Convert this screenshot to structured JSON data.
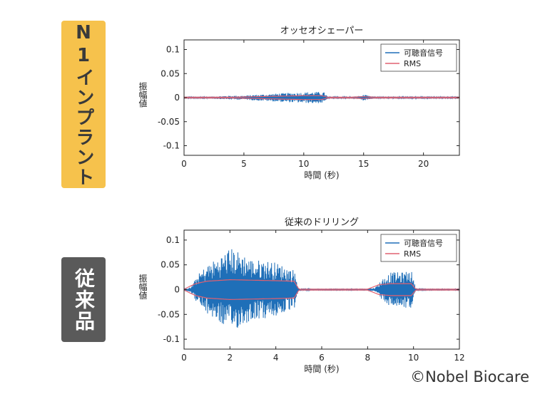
{
  "panels": {
    "top_label": "N1インプラント",
    "bottom_label": "従来品"
  },
  "credit": "©Nobel Biocare",
  "chart_data": [
    {
      "type": "line",
      "title": "オッセオシェーパー",
      "xlabel": "時間 (秒)",
      "ylabel": "振幅値",
      "xlim": [
        0,
        23
      ],
      "ylim": [
        -0.12,
        0.12
      ],
      "xticks": [
        0,
        5,
        10,
        15,
        20
      ],
      "yticks": [
        0.1,
        0.05,
        0,
        -0.05,
        -0.1
      ],
      "ytick_labels": [
        "0.1",
        "0.05",
        "0",
        "-0.05",
        "-0.1"
      ],
      "grid": false,
      "legend_position": "top-right",
      "series": [
        {
          "name": "可聴音信号",
          "color": "#1f6fb8",
          "kind": "waveform-amplitude-envelope",
          "x": [
            0,
            1,
            2,
            3,
            4,
            5,
            6,
            7,
            8,
            9,
            10,
            11,
            11.7,
            12,
            13,
            14,
            14.6,
            15,
            15.6,
            16,
            17,
            18,
            19,
            20,
            21,
            22,
            23
          ],
          "values": [
            0.002,
            0.002,
            0.002,
            0.003,
            0.004,
            0.004,
            0.006,
            0.007,
            0.009,
            0.01,
            0.011,
            0.012,
            0.011,
            0.002,
            0.002,
            0.002,
            0.002,
            0.006,
            0.003,
            0.002,
            0.002,
            0.002,
            0.002,
            0.002,
            0.002,
            0.002,
            0.002
          ]
        },
        {
          "name": "RMS",
          "color": "#e06070",
          "x": [
            0,
            2,
            4,
            6,
            8,
            10,
            11.5,
            12,
            14,
            15,
            16,
            18,
            20,
            23
          ],
          "values": [
            0.001,
            0.001,
            0.001,
            0.002,
            0.003,
            0.004,
            0.004,
            0.001,
            0.001,
            0.002,
            0.001,
            0.001,
            0.001,
            0.001
          ]
        }
      ]
    },
    {
      "type": "line",
      "title": "従来のドリリング",
      "xlabel": "時間 (秒)",
      "ylabel": "振幅値",
      "xlim": [
        0,
        12
      ],
      "ylim": [
        -0.12,
        0.12
      ],
      "xticks": [
        0,
        2,
        4,
        6,
        8,
        10,
        12
      ],
      "yticks": [
        0.1,
        0.05,
        0,
        -0.05,
        -0.1
      ],
      "ytick_labels": [
        "0.1",
        "0.05",
        "0",
        "-0.05",
        "-0.1"
      ],
      "grid": false,
      "legend_position": "top-right",
      "series": [
        {
          "name": "可聴音信号",
          "color": "#1f6fb8",
          "kind": "waveform-amplitude-envelope",
          "x": [
            0,
            0.3,
            0.6,
            1.0,
            1.5,
            2.0,
            2.5,
            3.0,
            3.5,
            4.0,
            4.5,
            4.8,
            5.0,
            5.5,
            6,
            7,
            8,
            8.3,
            8.6,
            9.0,
            9.5,
            9.9,
            10.1,
            10.5,
            11,
            12
          ],
          "values": [
            0.001,
            0.005,
            0.03,
            0.05,
            0.065,
            0.085,
            0.075,
            0.06,
            0.06,
            0.055,
            0.045,
            0.04,
            0.003,
            0.001,
            0.001,
            0.001,
            0.001,
            0.002,
            0.02,
            0.035,
            0.035,
            0.04,
            0.002,
            0.001,
            0.001,
            0.001
          ]
        },
        {
          "name": "RMS",
          "color": "#e06070",
          "x": [
            0,
            0.5,
            1,
            2,
            3,
            4,
            4.8,
            5.0,
            6,
            8,
            8.5,
            9,
            9.9,
            10.1,
            12
          ],
          "values": [
            0.001,
            0.012,
            0.017,
            0.02,
            0.019,
            0.018,
            0.017,
            0.001,
            0.001,
            0.001,
            0.01,
            0.012,
            0.012,
            0.001,
            0.001
          ]
        }
      ]
    }
  ]
}
